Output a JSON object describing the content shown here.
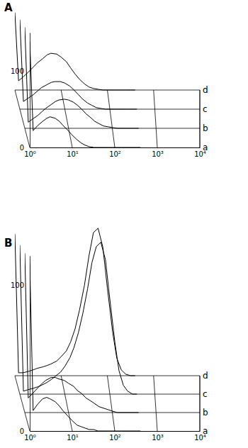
{
  "chart_data": [
    {
      "type": "line",
      "title": "A",
      "log": "x",
      "grid": true,
      "xlim": [
        1,
        10000
      ],
      "xticks": [
        {
          "value": 1,
          "label": "10⁰"
        },
        {
          "value": 10,
          "label": "10¹"
        },
        {
          "value": 100,
          "label": "10²"
        },
        {
          "value": 1000,
          "label": "10³"
        },
        {
          "value": 10000,
          "label": "10⁴"
        }
      ],
      "ylim": [
        0,
        150
      ],
      "yticks": [
        0,
        100
      ],
      "x": [
        1,
        1.2,
        1.5,
        2,
        2.5,
        3,
        4,
        5,
        6,
        8,
        10,
        13,
        16,
        20,
        25,
        32,
        40,
        50,
        63,
        80,
        100,
        130,
        160,
        200,
        250,
        320,
        400
      ],
      "series": [
        {
          "name": "a",
          "color": "#000000",
          "values": [
            139,
            22,
            28,
            34,
            38,
            40,
            38,
            34,
            29,
            22,
            16,
            10,
            6,
            3,
            1,
            0,
            0,
            0,
            0,
            0,
            0,
            0,
            0,
            0,
            0,
            0,
            0
          ]
        },
        {
          "name": "b",
          "color": "#000000",
          "values": [
            132,
            8,
            12,
            17,
            22,
            26,
            31,
            35,
            37,
            38,
            37,
            34,
            30,
            25,
            19,
            14,
            9,
            6,
            3,
            2,
            1,
            0,
            0,
            0,
            0,
            0,
            0
          ]
        },
        {
          "name": "c",
          "color": "#000000",
          "values": [
            117,
            10,
            14,
            19,
            24,
            28,
            32,
            35,
            36,
            36,
            34,
            30,
            25,
            19,
            13,
            8,
            5,
            2,
            1,
            0,
            0,
            0,
            0,
            0,
            0,
            0,
            0
          ]
        },
        {
          "name": "d",
          "color": "#000000",
          "values": [
            101,
            12,
            17,
            24,
            30,
            35,
            41,
            46,
            48,
            47,
            43,
            37,
            29,
            21,
            14,
            8,
            4,
            2,
            1,
            0,
            0,
            0,
            0,
            0,
            0,
            0,
            0
          ]
        }
      ]
    },
    {
      "type": "line",
      "title": "B",
      "log": "x",
      "grid": true,
      "xlim": [
        1,
        10000
      ],
      "xticks": [
        {
          "value": 1,
          "label": "10⁰"
        },
        {
          "value": 10,
          "label": "10¹"
        },
        {
          "value": 100,
          "label": "10²"
        },
        {
          "value": 1000,
          "label": "10³"
        },
        {
          "value": 10000,
          "label": "10⁴"
        }
      ],
      "ylim": [
        0,
        120
      ],
      "yticks": [
        0,
        100
      ],
      "x": [
        1,
        1.2,
        1.5,
        2,
        2.5,
        3,
        4,
        5,
        6,
        8,
        10,
        13,
        16,
        20,
        25,
        32,
        40,
        50,
        63,
        80,
        100,
        130,
        160,
        200,
        250,
        320,
        400
      ],
      "series": [
        {
          "name": "a",
          "color": "#000000",
          "values": [
            115,
            14,
            18,
            22,
            23,
            22,
            20,
            17,
            14,
            10,
            7,
            4,
            3,
            2,
            1,
            1,
            0,
            0,
            0,
            0,
            0,
            0,
            0,
            0,
            0,
            0,
            0
          ]
        },
        {
          "name": "b",
          "color": "#000000",
          "values": [
            109,
            10,
            13,
            17,
            20,
            22,
            24,
            24,
            23,
            22,
            20,
            18,
            15,
            13,
            10,
            8,
            6,
            4,
            3,
            2,
            1,
            0,
            0,
            0,
            0,
            0,
            0
          ]
        },
        {
          "name": "c",
          "color": "#000000",
          "values": [
            102,
            2,
            3,
            4,
            5,
            6,
            8,
            10,
            12,
            15,
            19,
            25,
            32,
            42,
            55,
            72,
            90,
            101,
            104,
            92,
            65,
            35,
            16,
            6,
            2,
            0,
            0
          ]
        },
        {
          "name": "d",
          "color": "#000000",
          "values": [
            97,
            2,
            2,
            3,
            4,
            5,
            6,
            7,
            8,
            10,
            13,
            17,
            23,
            32,
            45,
            62,
            82,
            98,
            101,
            88,
            60,
            30,
            12,
            4,
            1,
            0,
            0
          ]
        }
      ]
    }
  ]
}
